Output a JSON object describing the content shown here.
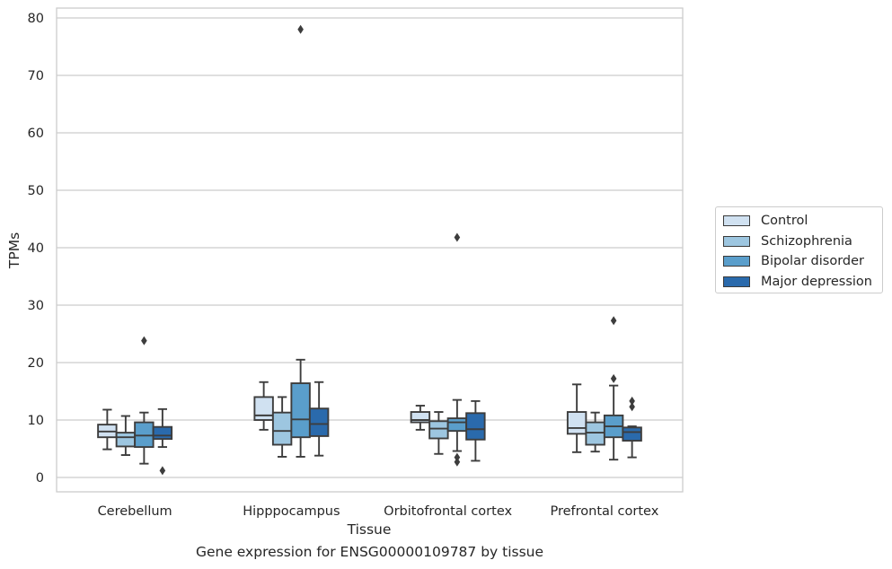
{
  "caption": "Gene expression for ENSG00000109787 by tissue",
  "chart_data": {
    "type": "box",
    "xlabel": "Tissue",
    "ylabel": "TPMs",
    "ylim": [
      -2.5,
      82
    ],
    "yticks": [
      0,
      10,
      20,
      30,
      40,
      50,
      60,
      70,
      80
    ],
    "grid": "horizontal",
    "legend_position": "right",
    "categories": [
      "Cerebellum",
      "Hipppocampus",
      "Orbitofrontal cortex",
      "Prefrontal cortex"
    ],
    "series": [
      {
        "name": "Control",
        "color": "#d0e1f1",
        "boxes": [
          {
            "whisker_low": 4.9,
            "q1": 7.0,
            "median": 8.0,
            "q3": 9.2,
            "whisker_high": 11.8,
            "outliers": []
          },
          {
            "whisker_low": 8.3,
            "q1": 10.0,
            "median": 10.8,
            "q3": 14.0,
            "whisker_high": 16.6,
            "outliers": []
          },
          {
            "whisker_low": 8.3,
            "q1": 9.6,
            "median": 10.0,
            "q3": 11.4,
            "whisker_high": 12.5,
            "outliers": []
          },
          {
            "whisker_low": 4.4,
            "q1": 7.6,
            "median": 8.6,
            "q3": 11.4,
            "whisker_high": 16.2,
            "outliers": []
          }
        ]
      },
      {
        "name": "Schizophrenia",
        "color": "#9dc6e0",
        "boxes": [
          {
            "whisker_low": 3.9,
            "q1": 5.4,
            "median": 7.0,
            "q3": 7.8,
            "whisker_high": 10.7,
            "outliers": []
          },
          {
            "whisker_low": 3.6,
            "q1": 5.7,
            "median": 8.1,
            "q3": 11.3,
            "whisker_high": 14.0,
            "outliers": []
          },
          {
            "whisker_low": 4.1,
            "q1": 6.8,
            "median": 8.5,
            "q3": 9.8,
            "whisker_high": 11.4,
            "outliers": []
          },
          {
            "whisker_low": 4.5,
            "q1": 5.7,
            "median": 7.8,
            "q3": 9.6,
            "whisker_high": 11.3,
            "outliers": []
          }
        ]
      },
      {
        "name": "Bipolar disorder",
        "color": "#5a9ecb",
        "boxes": [
          {
            "whisker_low": 2.4,
            "q1": 5.3,
            "median": 7.3,
            "q3": 9.6,
            "whisker_high": 11.3,
            "outliers": [
              23.8
            ]
          },
          {
            "whisker_low": 3.6,
            "q1": 7.0,
            "median": 10.1,
            "q3": 16.4,
            "whisker_high": 20.5,
            "outliers": [
              78.0
            ]
          },
          {
            "whisker_low": 4.6,
            "q1": 8.1,
            "median": 9.6,
            "q3": 10.3,
            "whisker_high": 13.5,
            "outliers": [
              41.8,
              3.5,
              2.7
            ]
          },
          {
            "whisker_low": 3.1,
            "q1": 7.0,
            "median": 8.9,
            "q3": 10.8,
            "whisker_high": 16.0,
            "outliers": [
              27.3,
              17.2
            ]
          }
        ]
      },
      {
        "name": "Major depression",
        "color": "#2a6aac",
        "boxes": [
          {
            "whisker_low": 5.3,
            "q1": 6.7,
            "median": 7.3,
            "q3": 8.8,
            "whisker_high": 11.9,
            "outliers": [
              1.2
            ]
          },
          {
            "whisker_low": 3.8,
            "q1": 7.2,
            "median": 9.3,
            "q3": 12.0,
            "whisker_high": 16.6,
            "outliers": []
          },
          {
            "whisker_low": 2.9,
            "q1": 6.6,
            "median": 8.4,
            "q3": 11.2,
            "whisker_high": 13.3,
            "outliers": []
          },
          {
            "whisker_low": 3.5,
            "q1": 6.4,
            "median": 7.9,
            "q3": 8.7,
            "whisker_high": 8.9,
            "outliers": [
              13.3,
              12.3
            ]
          }
        ]
      }
    ]
  }
}
